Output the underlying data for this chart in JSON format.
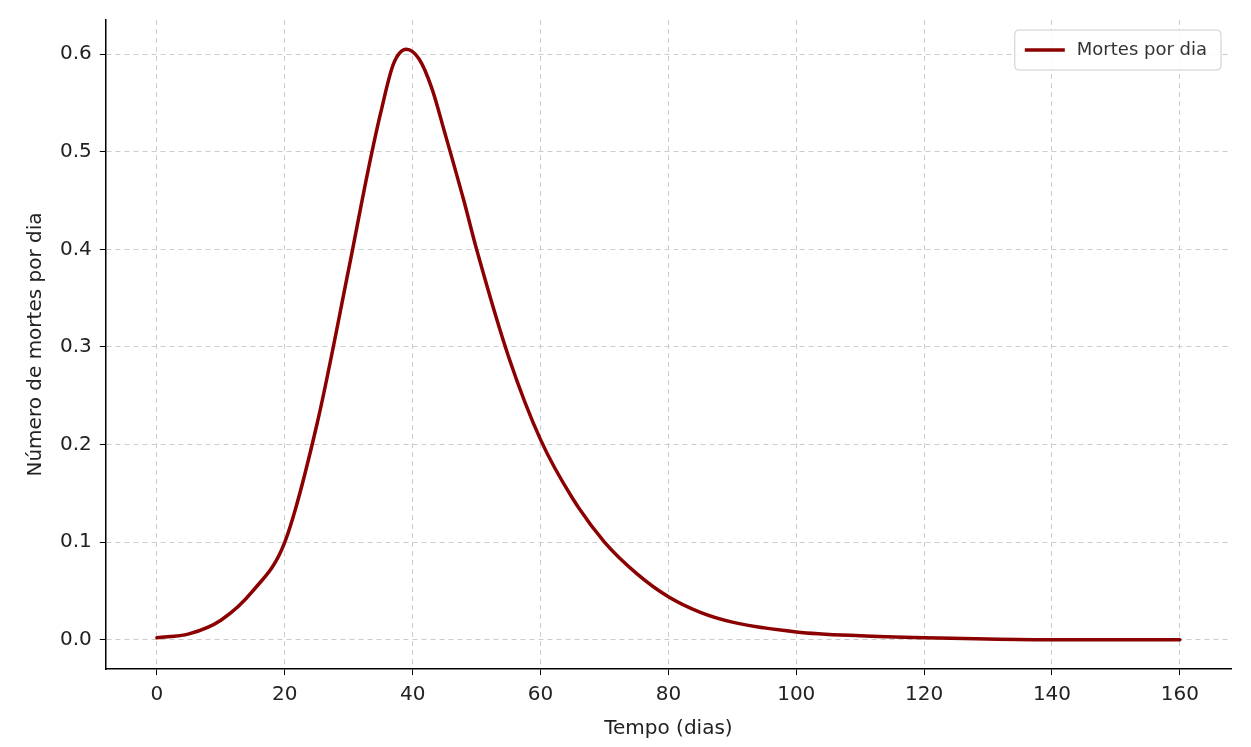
{
  "chart_data": {
    "type": "line",
    "xlabel": "Tempo (dias)",
    "ylabel": "Número de mortes por dia",
    "series": [
      {
        "name": "Mortes por dia",
        "color": "#8b0000",
        "x": [
          0,
          5,
          10,
          15,
          20,
          25,
          30,
          33,
          35,
          37,
          39,
          41,
          43,
          45,
          48,
          50,
          55,
          60,
          65,
          70,
          75,
          80,
          85,
          90,
          100,
          110,
          120,
          140,
          160
        ],
        "values": [
          0.002,
          0.006,
          0.02,
          0.05,
          0.1,
          0.22,
          0.38,
          0.48,
          0.54,
          0.59,
          0.605,
          0.595,
          0.565,
          0.52,
          0.45,
          0.4,
          0.29,
          0.205,
          0.145,
          0.1,
          0.068,
          0.044,
          0.028,
          0.018,
          0.008,
          0.004,
          0.002,
          0,
          0
        ]
      }
    ],
    "xlim": [
      -8,
      168
    ],
    "ylim": [
      -0.03,
      0.635
    ],
    "xticks": [
      0,
      20,
      40,
      60,
      80,
      100,
      120,
      140,
      160
    ],
    "yticks": [
      {
        "value": 0,
        "label": "0.0"
      },
      {
        "value": 0.1,
        "label": "0.1"
      },
      {
        "value": 0.2,
        "label": "0.2"
      },
      {
        "value": 0.3,
        "label": "0.3"
      },
      {
        "value": 0.4,
        "label": "0.4"
      },
      {
        "value": 0.5,
        "label": "0.5"
      },
      {
        "value": 0.6,
        "label": "0.6"
      }
    ],
    "grid": true,
    "legend": "top right",
    "marker": "none",
    "line_style": "solid"
  }
}
